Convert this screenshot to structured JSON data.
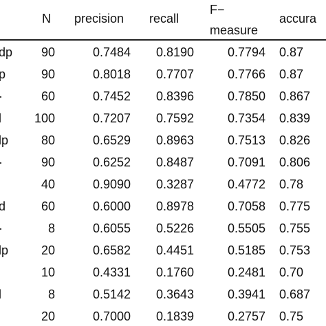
{
  "table": {
    "headers": {
      "n": "N",
      "precision": "precision",
      "recall": "recall",
      "f_top": "F−",
      "f_bottom": "measure",
      "accuracy": "accura"
    },
    "rows": [
      {
        "label": "dp",
        "n": "90",
        "precision": "0.7484",
        "recall": "0.8190",
        "f": "0.7794",
        "acc": "0.87"
      },
      {
        "label": "p",
        "n": "90",
        "precision": "0.8018",
        "recall": "0.7707",
        "f": "0.7766",
        "acc": "0.87"
      },
      {
        "label": "·",
        "n": "60",
        "precision": "0.7452",
        "recall": "0.8396",
        "f": "0.7850",
        "acc": "0.867"
      },
      {
        "label": "l",
        "n": "100",
        "precision": "0.7207",
        "recall": "0.7592",
        "f": "0.7354",
        "acc": "0.839"
      },
      {
        "label": "lp",
        "n": "80",
        "precision": "0.6529",
        "recall": "0.8963",
        "f": "0.7513",
        "acc": "0.826"
      },
      {
        "label": "·",
        "n": "90",
        "precision": "0.6252",
        "recall": "0.8487",
        "f": "0.7091",
        "acc": "0.806"
      },
      {
        "label": "",
        "n": "40",
        "precision": "0.9090",
        "recall": "0.3287",
        "f": "0.4772",
        "acc": "0.78"
      },
      {
        "label": "d",
        "n": "60",
        "precision": "0.6000",
        "recall": "0.8978",
        "f": "0.7058",
        "acc": "0.775"
      },
      {
        "label": "·",
        "n": "8",
        "precision": "0.6055",
        "recall": "0.5226",
        "f": "0.5505",
        "acc": "0.755"
      },
      {
        "label": "lp",
        "n": "20",
        "precision": "0.6582",
        "recall": "0.4451",
        "f": "0.5185",
        "acc": "0.753"
      },
      {
        "label": "",
        "n": "10",
        "precision": "0.4331",
        "recall": "0.1760",
        "f": "0.2481",
        "acc": "0.70"
      },
      {
        "label": "l",
        "n": "8",
        "precision": "0.5142",
        "recall": "0.3643",
        "f": "0.3941",
        "acc": "0.687"
      },
      {
        "label": "",
        "n": "20",
        "precision": "0.7000",
        "recall": "0.1839",
        "f": "0.2757",
        "acc": "0.75"
      }
    ]
  }
}
